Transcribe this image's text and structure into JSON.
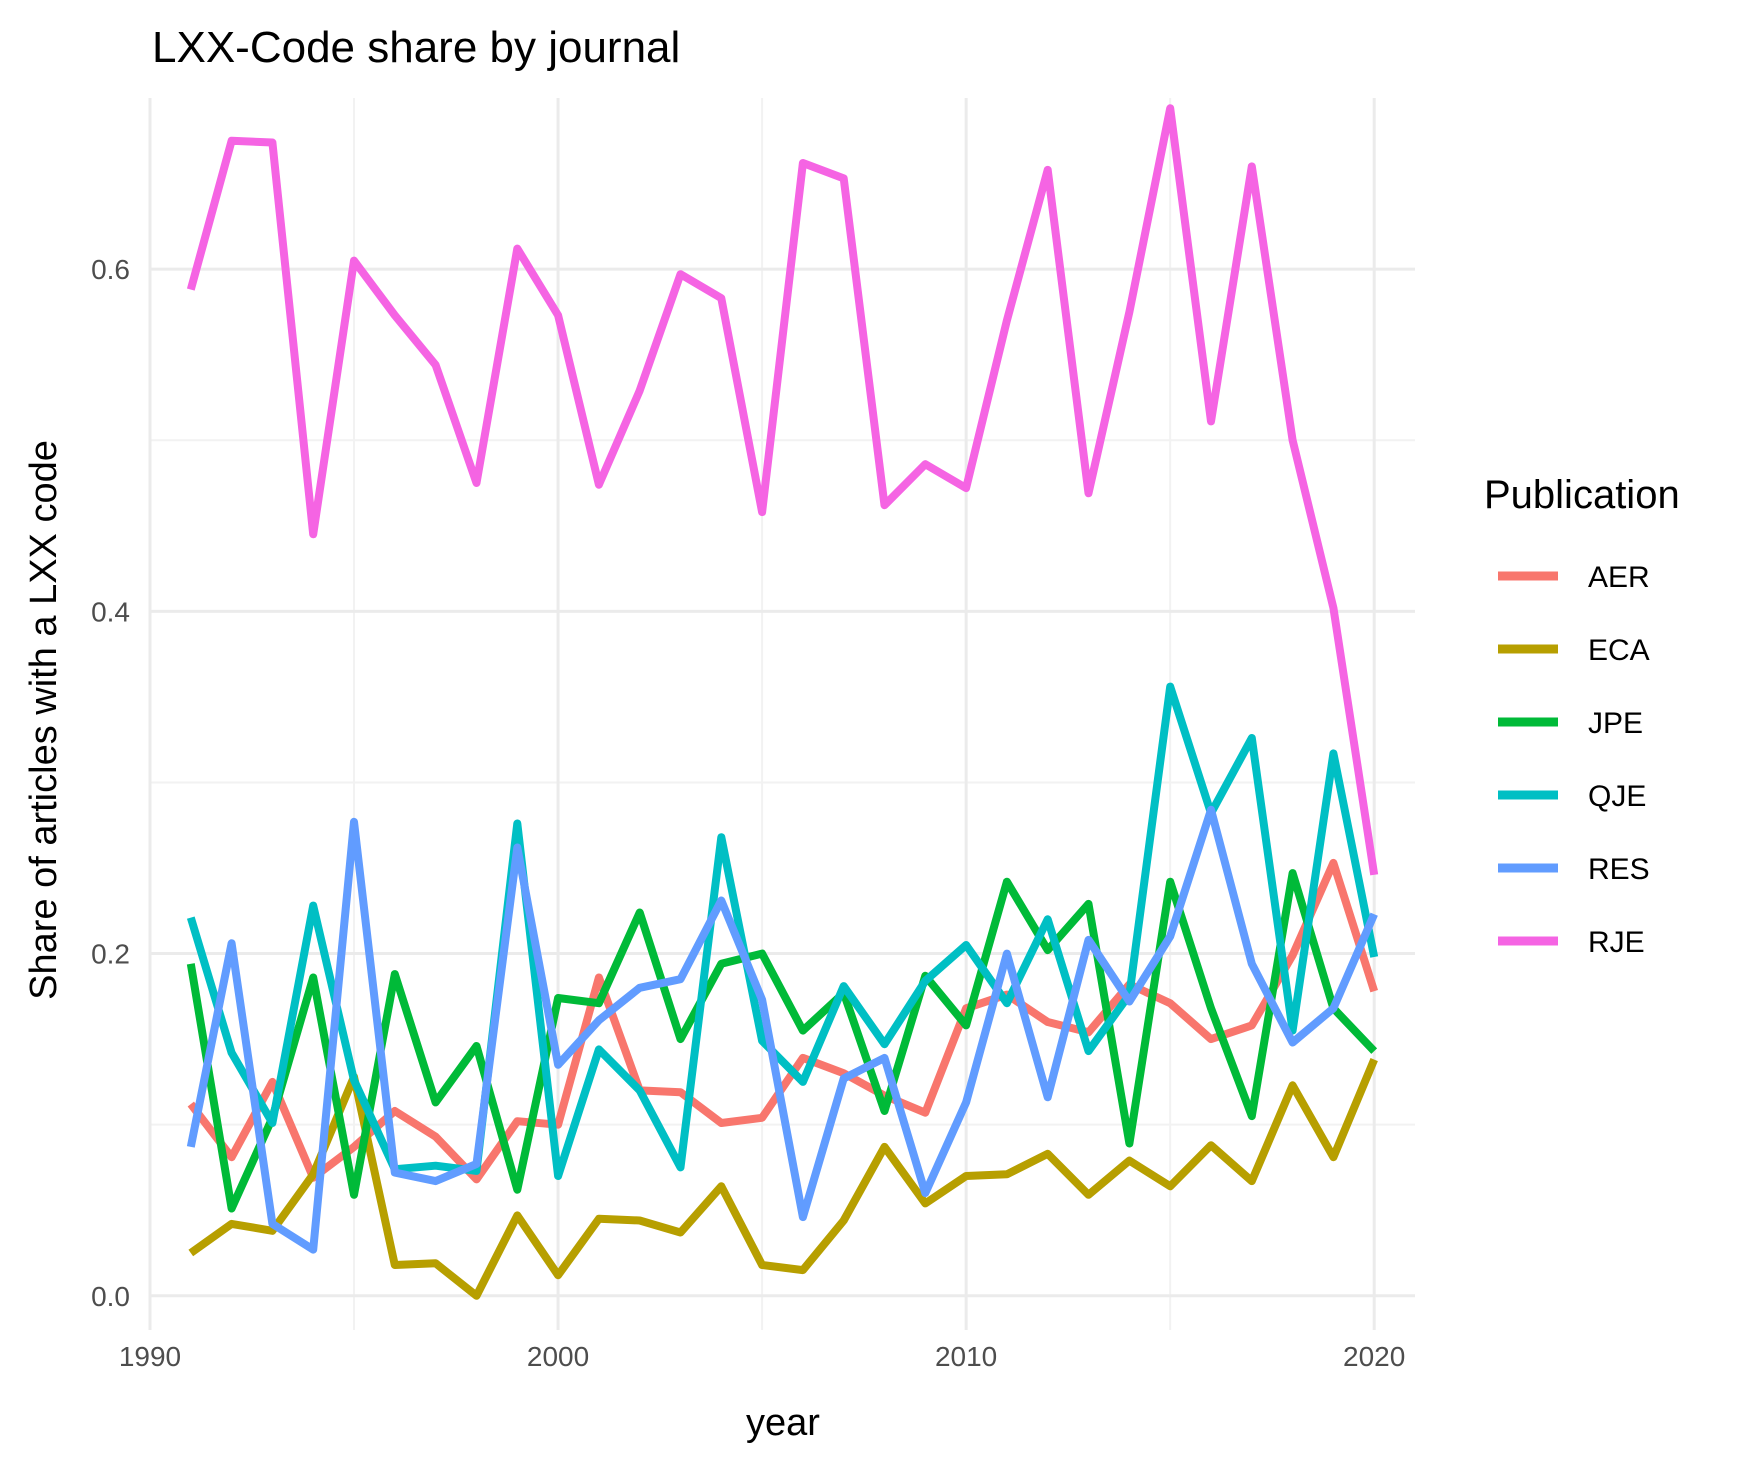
{
  "chart_data": {
    "type": "line",
    "title": "LXX-Code share by journal",
    "xlabel": "year",
    "ylabel": "Share of articles with a LXX code",
    "xlim": [
      1990,
      2021
    ],
    "ylim": [
      -0.02,
      0.7
    ],
    "x_ticks": [
      1990,
      2000,
      2010,
      2020
    ],
    "x_tick_labels": [
      "1990",
      "2000",
      "2010",
      "2020"
    ],
    "y_ticks": [
      0.0,
      0.2,
      0.4,
      0.6
    ],
    "y_tick_labels": [
      "0.0",
      "0.2",
      "0.4",
      "0.6"
    ],
    "grid": true,
    "legend_title": "Publication",
    "legend_position": "right",
    "x": [
      1991,
      1992,
      1993,
      1994,
      1995,
      1996,
      1997,
      1998,
      1999,
      2000,
      2001,
      2002,
      2003,
      2004,
      2005,
      2006,
      2007,
      2008,
      2009,
      2010,
      2011,
      2012,
      2013,
      2014,
      2015,
      2016,
      2017,
      2018,
      2019,
      2020
    ],
    "series": [
      {
        "name": "AER",
        "color": "#F8766D",
        "values": [
          0.112,
          0.081,
          0.125,
          0.069,
          0.087,
          0.108,
          0.093,
          0.068,
          0.102,
          0.1,
          0.186,
          0.12,
          0.119,
          0.101,
          0.104,
          0.139,
          0.13,
          0.117,
          0.107,
          0.168,
          0.176,
          0.16,
          0.154,
          0.182,
          0.171,
          0.15,
          0.158,
          0.199,
          0.253,
          0.178
        ]
      },
      {
        "name": "ECA",
        "color": "#B79F00",
        "values": [
          0.025,
          0.042,
          0.038,
          0.071,
          0.128,
          0.018,
          0.019,
          0.0,
          0.047,
          0.012,
          0.045,
          0.044,
          0.037,
          0.064,
          0.018,
          0.015,
          0.044,
          0.087,
          0.054,
          0.07,
          0.071,
          0.083,
          0.059,
          0.079,
          0.064,
          0.088,
          0.067,
          0.123,
          0.081,
          0.138
        ]
      },
      {
        "name": "JPE",
        "color": "#00BA38",
        "values": [
          0.194,
          0.051,
          0.104,
          0.186,
          0.059,
          0.188,
          0.113,
          0.146,
          0.062,
          0.174,
          0.171,
          0.224,
          0.15,
          0.194,
          0.2,
          0.155,
          0.177,
          0.108,
          0.187,
          0.158,
          0.242,
          0.202,
          0.229,
          0.089,
          0.242,
          0.168,
          0.105,
          0.247,
          0.168,
          0.143
        ]
      },
      {
        "name": "QJE",
        "color": "#00BFC4",
        "values": [
          0.221,
          0.142,
          0.101,
          0.228,
          0.126,
          0.074,
          0.076,
          0.073,
          0.276,
          0.07,
          0.144,
          0.12,
          0.075,
          0.268,
          0.149,
          0.125,
          0.181,
          0.147,
          0.184,
          0.205,
          0.171,
          0.22,
          0.143,
          0.176,
          0.356,
          0.282,
          0.326,
          0.155,
          0.317,
          0.198
        ]
      },
      {
        "name": "RES",
        "color": "#619CFF",
        "values": [
          0.087,
          0.206,
          0.042,
          0.027,
          0.277,
          0.072,
          0.067,
          0.077,
          0.262,
          0.135,
          0.161,
          0.18,
          0.185,
          0.231,
          0.173,
          0.046,
          0.127,
          0.139,
          0.06,
          0.113,
          0.2,
          0.116,
          0.208,
          0.172,
          0.21,
          0.284,
          0.194,
          0.148,
          0.168,
          0.223
        ]
      },
      {
        "name": "RJE",
        "color": "#F564E3",
        "values": [
          0.588,
          0.675,
          0.674,
          0.445,
          0.605,
          0.573,
          0.544,
          0.475,
          0.612,
          0.573,
          0.474,
          0.529,
          0.597,
          0.583,
          0.458,
          0.662,
          0.653,
          0.462,
          0.486,
          0.472,
          0.57,
          0.658,
          0.469,
          0.575,
          0.694,
          0.511,
          0.66,
          0.5,
          0.402,
          0.246
        ]
      }
    ]
  }
}
